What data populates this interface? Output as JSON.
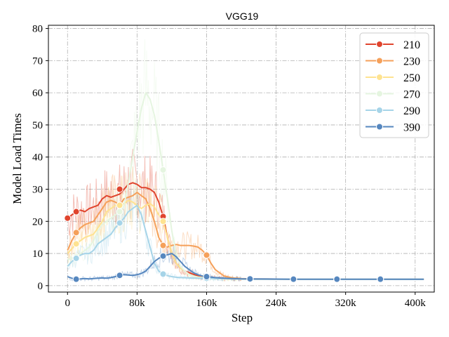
{
  "chart_data": {
    "type": "line",
    "title": "VGG19",
    "xlabel": "Step",
    "ylabel": "Model Load Times",
    "xlim": [
      -22000,
      422000
    ],
    "ylim": [
      -2,
      81
    ],
    "xticks": [
      0,
      80000,
      160000,
      240000,
      320000,
      400000
    ],
    "xtick_labels": [
      "0",
      "80k",
      "160k",
      "240k",
      "320k",
      "400k"
    ],
    "yticks": [
      0,
      10,
      20,
      30,
      40,
      50,
      60,
      70,
      80
    ],
    "ytick_labels": [
      "0",
      "10",
      "20",
      "30",
      "40",
      "50",
      "60",
      "70",
      "80"
    ],
    "grid": true,
    "legend_position": "top-right",
    "series": [
      {
        "name": "210",
        "color": "#e0452e",
        "x": [
          0,
          5000,
          10000,
          15000,
          20000,
          25000,
          30000,
          35000,
          40000,
          45000,
          50000,
          55000,
          60000,
          65000,
          70000,
          75000,
          80000,
          85000,
          90000,
          95000,
          100000,
          105000,
          110000,
          115000,
          120000,
          125000,
          130000,
          135000,
          140000,
          145000,
          150000,
          155000,
          160000,
          170000,
          180000,
          190000,
          200000,
          210000,
          260000,
          310000,
          360000,
          410000
        ],
        "y": [
          21,
          22,
          23,
          23.5,
          23,
          24,
          24.5,
          25,
          27,
          28,
          27.5,
          28,
          28.5,
          30,
          31.5,
          32,
          31.5,
          30.5,
          30.5,
          30,
          29,
          26,
          21.5,
          15,
          10,
          7,
          5.5,
          4.5,
          4,
          3.5,
          3,
          2.7,
          2.5,
          2.3,
          2.2,
          2.1,
          2.1,
          2,
          2,
          2,
          2,
          2
        ],
        "marker_x": [
          0,
          10000,
          60000,
          110000,
          160000,
          210000,
          260000,
          310000,
          360000
        ],
        "marker_y": [
          21,
          23,
          30,
          21.5,
          2.5,
          2,
          2,
          2,
          2
        ]
      },
      {
        "name": "230",
        "color": "#f5a05a",
        "x": [
          0,
          5000,
          10000,
          15000,
          20000,
          25000,
          30000,
          35000,
          40000,
          45000,
          50000,
          55000,
          60000,
          65000,
          70000,
          75000,
          80000,
          85000,
          90000,
          95000,
          100000,
          105000,
          110000,
          115000,
          120000,
          125000,
          130000,
          135000,
          140000,
          145000,
          150000,
          155000,
          160000,
          165000,
          170000,
          175000,
          180000,
          190000,
          200000,
          210000,
          260000,
          310000,
          360000,
          410000
        ],
        "y": [
          11,
          14,
          16.5,
          18,
          19,
          19.5,
          20,
          22,
          24,
          26,
          26.5,
          26,
          25,
          27,
          27.5,
          28,
          29,
          28,
          27,
          24,
          20,
          15,
          12.5,
          12,
          12.5,
          12.8,
          12.5,
          12.5,
          12.5,
          12.3,
          12,
          11,
          9.5,
          7,
          5,
          4,
          3,
          2.4,
          2.2,
          2.1,
          2,
          2,
          2,
          2
        ],
        "marker_x": [
          10000,
          60000,
          110000,
          160000,
          210000,
          260000,
          310000,
          360000
        ],
        "marker_y": [
          16.5,
          25,
          12.5,
          9.5,
          2.1,
          2,
          2,
          2
        ]
      },
      {
        "name": "250",
        "color": "#fee391",
        "x": [
          0,
          5000,
          10000,
          15000,
          20000,
          25000,
          30000,
          35000,
          40000,
          45000,
          50000,
          55000,
          60000,
          65000,
          70000,
          75000,
          80000,
          85000,
          90000,
          95000,
          100000,
          105000,
          110000,
          115000,
          120000,
          125000,
          130000,
          135000,
          140000,
          145000,
          150000,
          160000,
          170000,
          180000,
          190000,
          200000,
          210000,
          260000,
          310000,
          360000,
          410000
        ],
        "y": [
          10,
          11.5,
          13,
          14,
          15,
          15.5,
          16,
          18,
          20,
          23,
          24,
          25,
          25,
          25.5,
          26.5,
          26,
          25,
          24,
          25,
          25.5,
          24.5,
          22,
          20,
          15,
          10,
          7,
          5.5,
          4.5,
          3.5,
          3,
          2.7,
          2.4,
          2.2,
          2.1,
          2.1,
          2,
          2,
          2,
          2,
          2,
          2
        ],
        "marker_x": [
          10000,
          60000,
          110000,
          160000,
          210000,
          260000,
          310000,
          360000
        ],
        "marker_y": [
          13,
          25,
          20,
          2.4,
          2,
          2,
          2,
          2
        ]
      },
      {
        "name": "270",
        "color": "#e5f5e0",
        "x": [
          0,
          5000,
          10000,
          15000,
          20000,
          25000,
          30000,
          35000,
          40000,
          45000,
          50000,
          55000,
          60000,
          65000,
          70000,
          75000,
          80000,
          85000,
          90000,
          95000,
          100000,
          105000,
          110000,
          115000,
          120000,
          125000,
          130000,
          135000,
          140000,
          145000,
          150000,
          160000,
          170000,
          180000,
          190000,
          200000,
          210000,
          260000,
          310000,
          360000,
          410000
        ],
        "y": [
          8,
          8.5,
          9,
          10,
          11,
          12,
          14,
          17,
          19,
          20,
          21,
          22,
          23,
          25,
          32,
          40,
          48,
          55,
          60,
          58,
          53,
          45,
          36,
          27,
          17,
          10,
          6,
          4.5,
          3.5,
          3,
          2.6,
          2.3,
          2.2,
          2.1,
          2.1,
          2,
          2,
          2,
          2,
          2,
          2
        ],
        "marker_x": [
          10000,
          60000,
          110000,
          160000,
          210000,
          260000,
          310000,
          360000
        ],
        "marker_y": [
          9,
          23,
          36,
          2.3,
          2,
          2,
          2,
          2
        ]
      },
      {
        "name": "290",
        "color": "#a6d4e8",
        "x": [
          0,
          5000,
          10000,
          15000,
          20000,
          25000,
          30000,
          35000,
          40000,
          45000,
          50000,
          55000,
          60000,
          65000,
          70000,
          75000,
          80000,
          85000,
          90000,
          95000,
          100000,
          105000,
          110000,
          115000,
          120000,
          125000,
          130000,
          140000,
          150000,
          160000,
          170000,
          180000,
          190000,
          200000,
          210000,
          260000,
          310000,
          360000,
          410000
        ],
        "y": [
          6,
          7.5,
          8.5,
          9.5,
          10,
          10,
          11,
          13,
          14,
          15,
          16,
          18,
          19.5,
          21,
          23,
          24,
          25,
          22,
          17,
          12,
          7,
          4.5,
          3.6,
          3.1,
          2.8,
          2.6,
          2.5,
          2.4,
          2.3,
          2.3,
          2.2,
          2.2,
          2.1,
          2.1,
          2,
          2,
          2,
          2,
          2
        ],
        "marker_x": [
          10000,
          60000,
          110000,
          160000,
          210000,
          260000,
          310000,
          360000
        ],
        "marker_y": [
          8.5,
          19.5,
          3.6,
          2.3,
          2,
          2,
          2,
          2
        ]
      },
      {
        "name": "390",
        "color": "#5687bf",
        "x": [
          0,
          5000,
          10000,
          15000,
          20000,
          25000,
          30000,
          35000,
          40000,
          45000,
          50000,
          55000,
          60000,
          65000,
          70000,
          75000,
          80000,
          85000,
          90000,
          95000,
          100000,
          105000,
          110000,
          115000,
          120000,
          125000,
          130000,
          135000,
          140000,
          145000,
          150000,
          155000,
          160000,
          170000,
          180000,
          190000,
          200000,
          210000,
          260000,
          310000,
          360000,
          410000
        ],
        "y": [
          2.8,
          2.3,
          2,
          2.1,
          2.2,
          2.1,
          2.2,
          2.3,
          2.4,
          2.3,
          2.5,
          2.8,
          3.2,
          3.4,
          3.3,
          3.2,
          3.4,
          3.8,
          4.5,
          6,
          7.5,
          8.5,
          9.2,
          9.6,
          10,
          9,
          7.5,
          6,
          5,
          4,
          3.4,
          3,
          2.8,
          2.5,
          2.3,
          2.2,
          2.1,
          2.1,
          2,
          2,
          2,
          2
        ],
        "marker_x": [
          10000,
          60000,
          110000,
          160000,
          210000,
          260000,
          310000,
          360000
        ],
        "marker_y": [
          2,
          3.2,
          9.2,
          2.8,
          2.1,
          2,
          2,
          2
        ]
      }
    ]
  }
}
